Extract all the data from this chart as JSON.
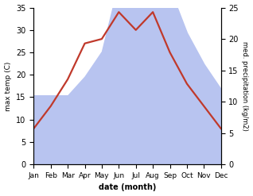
{
  "months": [
    "Jan",
    "Feb",
    "Mar",
    "Apr",
    "May",
    "Jun",
    "Jul",
    "Aug",
    "Sep",
    "Oct",
    "Nov",
    "Dec"
  ],
  "temperature": [
    8,
    13,
    19,
    27,
    28,
    34,
    30,
    34,
    25,
    18,
    13,
    8
  ],
  "precipitation": [
    11,
    11,
    11,
    14,
    18,
    29,
    28,
    27,
    28,
    21,
    16,
    12
  ],
  "temp_color": "#c0392b",
  "precip_color": "#b8c4f0",
  "ylabel_left": "max temp (C)",
  "ylabel_right": "med. precipitation (kg/m2)",
  "xlabel": "date (month)",
  "ylim_left": [
    0,
    35
  ],
  "ylim_right": [
    0,
    25
  ],
  "yticks_left": [
    0,
    5,
    10,
    15,
    20,
    25,
    30,
    35
  ],
  "yticks_right": [
    0,
    5,
    10,
    15,
    20,
    25
  ],
  "bg_color": "#ffffff",
  "temp_linewidth": 1.6
}
